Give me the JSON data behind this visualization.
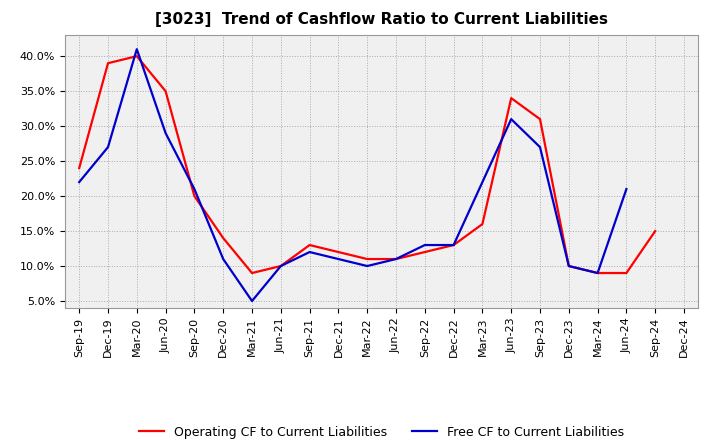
{
  "title": "[3023]  Trend of Cashflow Ratio to Current Liabilities",
  "x_labels": [
    "Sep-19",
    "Dec-19",
    "Mar-20",
    "Jun-20",
    "Sep-20",
    "Dec-20",
    "Mar-21",
    "Jun-21",
    "Sep-21",
    "Dec-21",
    "Mar-22",
    "Jun-22",
    "Sep-22",
    "Dec-22",
    "Mar-23",
    "Jun-23",
    "Sep-23",
    "Dec-23",
    "Mar-24",
    "Jun-24",
    "Sep-24",
    "Dec-24"
  ],
  "operating_cf": [
    0.24,
    0.39,
    0.4,
    0.35,
    0.2,
    0.14,
    0.09,
    0.1,
    0.13,
    0.12,
    0.11,
    0.11,
    0.12,
    0.13,
    0.16,
    0.34,
    0.31,
    0.1,
    0.09,
    0.09,
    0.15,
    null
  ],
  "free_cf": [
    0.22,
    0.27,
    0.41,
    0.29,
    0.21,
    0.11,
    0.05,
    0.1,
    0.12,
    0.11,
    0.1,
    0.11,
    0.13,
    0.13,
    0.22,
    0.31,
    0.27,
    0.1,
    0.09,
    0.21,
    null,
    null
  ],
  "operating_color": "#ff0000",
  "free_color": "#0000cc",
  "ylim": [
    0.04,
    0.43
  ],
  "yticks": [
    0.05,
    0.1,
    0.15,
    0.2,
    0.25,
    0.3,
    0.35,
    0.4
  ],
  "background_color": "#ffffff",
  "plot_bg_color": "#f0f0f0",
  "grid_color": "#aaaaaa",
  "legend_op": "Operating CF to Current Liabilities",
  "legend_free": "Free CF to Current Liabilities",
  "title_fontsize": 11,
  "tick_fontsize": 8,
  "legend_fontsize": 9,
  "line_width": 1.6
}
